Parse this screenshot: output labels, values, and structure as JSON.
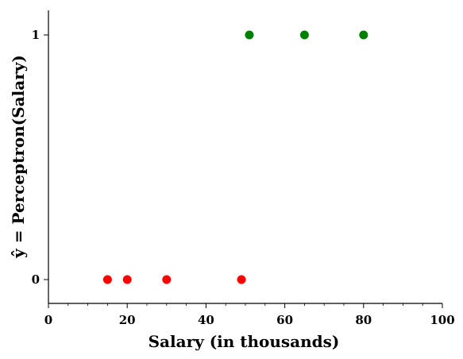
{
  "chart_data": {
    "type": "scatter",
    "title": "",
    "xlabel": "Salary (in thousands)",
    "ylabel": "ŷ = Perceptron(Salary)",
    "xlim": [
      0,
      100
    ],
    "ylim": [
      -0.1,
      1.1
    ],
    "x_ticks": [
      {
        "value": 0,
        "label": "0"
      },
      {
        "value": 20,
        "label": "20"
      },
      {
        "value": 40,
        "label": "40"
      },
      {
        "value": 60,
        "label": "60"
      },
      {
        "value": 80,
        "label": "80"
      },
      {
        "value": 100,
        "label": "100"
      }
    ],
    "x_minor_ticks": [
      5,
      10,
      15,
      25,
      30,
      35,
      45,
      50,
      55,
      65,
      70,
      75,
      85,
      90,
      95
    ],
    "y_ticks": [
      {
        "value": 0,
        "label": "0"
      },
      {
        "value": 1,
        "label": "1"
      }
    ],
    "grid": false,
    "series": [
      {
        "color": "#ff0000",
        "points": [
          {
            "x": 15,
            "y": 0
          },
          {
            "x": 20,
            "y": 0
          },
          {
            "x": 30,
            "y": 0
          },
          {
            "x": 49,
            "y": 0
          }
        ]
      },
      {
        "color": "#008000",
        "points": [
          {
            "x": 51,
            "y": 1
          },
          {
            "x": 65,
            "y": 1
          },
          {
            "x": 80,
            "y": 1
          }
        ]
      }
    ]
  }
}
